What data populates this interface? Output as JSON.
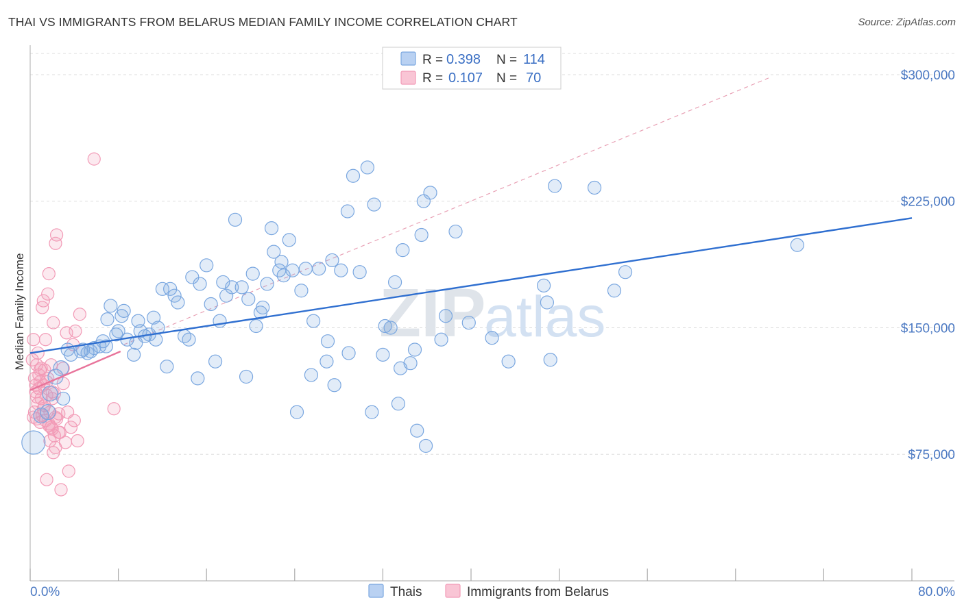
{
  "title": "THAI VS IMMIGRANTS FROM BELARUS MEDIAN FAMILY INCOME CORRELATION CHART",
  "source": "Source: ZipAtlas.com",
  "watermark": {
    "zip": "ZIP",
    "atlas": "atlas"
  },
  "chart_data": {
    "type": "scatter",
    "ylabel": "Median Family Income",
    "xlim": [
      0,
      80
    ],
    "ylim": [
      0,
      315000
    ],
    "x_tick_labels": {
      "left": "0.0%",
      "right": "80.0%"
    },
    "y_ticks": [
      {
        "value": 75000,
        "label": "$75,000"
      },
      {
        "value": 150000,
        "label": "$150,000"
      },
      {
        "value": 225000,
        "label": "$225,000"
      },
      {
        "value": 300000,
        "label": "$300,000"
      }
    ],
    "grid": true,
    "legend": {
      "placement": "top-center",
      "rows": [
        {
          "r_label": "R =",
          "r": "0.398",
          "n_label": "N =",
          "n": "114"
        },
        {
          "r_label": "R =",
          "r": "0.107",
          "n_label": "N =",
          "n": "70"
        }
      ]
    },
    "colors": {
      "thais": "#7aa7e0",
      "belarus": "#f29ab6",
      "thais_line": "#2f6fd0",
      "belarus_line": "#e8749b",
      "ref_line": "#e8a0b4"
    },
    "series": [
      {
        "name": "Thais",
        "points": [
          [
            0.3,
            82000
          ],
          [
            1.0,
            98000
          ],
          [
            1.6,
            100000
          ],
          [
            1.8,
            111000
          ],
          [
            2.3,
            121000
          ],
          [
            2.8,
            126000
          ],
          [
            3.0,
            108000
          ],
          [
            3.4,
            137000
          ],
          [
            3.7,
            134000
          ],
          [
            4.6,
            136000
          ],
          [
            4.8,
            137000
          ],
          [
            5.2,
            135000
          ],
          [
            5.5,
            136000
          ],
          [
            5.8,
            138000
          ],
          [
            6.3,
            139000
          ],
          [
            6.6,
            142000
          ],
          [
            6.9,
            139000
          ],
          [
            7.0,
            155000
          ],
          [
            7.3,
            163000
          ],
          [
            7.8,
            146000
          ],
          [
            8.0,
            148000
          ],
          [
            8.3,
            157000
          ],
          [
            8.5,
            160000
          ],
          [
            8.8,
            143000
          ],
          [
            9.4,
            134000
          ],
          [
            9.6,
            141000
          ],
          [
            9.8,
            154000
          ],
          [
            10.0,
            148000
          ],
          [
            10.4,
            145000
          ],
          [
            10.8,
            146000
          ],
          [
            11.2,
            156000
          ],
          [
            11.4,
            143000
          ],
          [
            11.6,
            150000
          ],
          [
            12.0,
            173000
          ],
          [
            12.4,
            127000
          ],
          [
            12.7,
            173000
          ],
          [
            13.1,
            169000
          ],
          [
            13.4,
            165000
          ],
          [
            14.0,
            145000
          ],
          [
            14.4,
            143000
          ],
          [
            14.7,
            180000
          ],
          [
            15.2,
            120000
          ],
          [
            15.4,
            176000
          ],
          [
            16.0,
            187000
          ],
          [
            16.4,
            164000
          ],
          [
            16.8,
            130000
          ],
          [
            17.2,
            154000
          ],
          [
            17.5,
            177000
          ],
          [
            17.8,
            169000
          ],
          [
            18.3,
            174000
          ],
          [
            18.6,
            214000
          ],
          [
            19.2,
            174000
          ],
          [
            19.6,
            121000
          ],
          [
            19.8,
            167000
          ],
          [
            20.2,
            182000
          ],
          [
            20.5,
            151000
          ],
          [
            20.9,
            159000
          ],
          [
            21.1,
            162000
          ],
          [
            21.5,
            176000
          ],
          [
            21.9,
            209000
          ],
          [
            22.1,
            195000
          ],
          [
            22.6,
            184000
          ],
          [
            22.8,
            189000
          ],
          [
            23.0,
            181000
          ],
          [
            23.5,
            202000
          ],
          [
            23.8,
            184000
          ],
          [
            24.2,
            100000
          ],
          [
            24.6,
            172000
          ],
          [
            25.0,
            185000
          ],
          [
            25.5,
            122000
          ],
          [
            25.7,
            154000
          ],
          [
            26.2,
            185000
          ],
          [
            26.9,
            130000
          ],
          [
            27.0,
            142000
          ],
          [
            27.4,
            190000
          ],
          [
            27.6,
            116000
          ],
          [
            28.2,
            184000
          ],
          [
            28.8,
            219000
          ],
          [
            28.9,
            135000
          ],
          [
            29.3,
            240000
          ],
          [
            29.9,
            183000
          ],
          [
            30.6,
            245000
          ],
          [
            31.0,
            100000
          ],
          [
            31.2,
            223000
          ],
          [
            32.0,
            134000
          ],
          [
            32.2,
            151000
          ],
          [
            32.7,
            150000
          ],
          [
            33.1,
            177000
          ],
          [
            33.4,
            105000
          ],
          [
            33.6,
            126000
          ],
          [
            33.8,
            196000
          ],
          [
            34.5,
            129000
          ],
          [
            34.9,
            137000
          ],
          [
            35.1,
            89000
          ],
          [
            35.5,
            205000
          ],
          [
            35.7,
            225000
          ],
          [
            35.9,
            80000
          ],
          [
            36.3,
            230000
          ],
          [
            37.3,
            143000
          ],
          [
            37.7,
            157000
          ],
          [
            38.6,
            207000
          ],
          [
            39.8,
            153000
          ],
          [
            41.9,
            144000
          ],
          [
            43.4,
            130000
          ],
          [
            46.6,
            175000
          ],
          [
            46.9,
            165000
          ],
          [
            47.2,
            131000
          ],
          [
            47.6,
            234000
          ],
          [
            51.2,
            233000
          ],
          [
            53.0,
            172000
          ],
          [
            54.0,
            183000
          ],
          [
            69.6,
            199000
          ]
        ],
        "trend": {
          "x": [
            0,
            80
          ],
          "y": [
            135000,
            215000
          ]
        }
      },
      {
        "name": "Immigrants from Belarus",
        "points": [
          [
            0.2,
            131000
          ],
          [
            0.3,
            143000
          ],
          [
            0.4,
            120000
          ],
          [
            0.4,
            100000
          ],
          [
            0.5,
            116000
          ],
          [
            0.5,
            112000
          ],
          [
            0.6,
            128000
          ],
          [
            0.6,
            96000
          ],
          [
            0.7,
            135000
          ],
          [
            0.7,
            105000
          ],
          [
            0.8,
            122000
          ],
          [
            0.8,
            114000
          ],
          [
            0.9,
            94000
          ],
          [
            0.9,
            118000
          ],
          [
            1.0,
            108000
          ],
          [
            1.0,
            126000
          ],
          [
            1.1,
            162000
          ],
          [
            1.1,
            98000
          ],
          [
            1.2,
            166000
          ],
          [
            1.2,
            116000
          ],
          [
            1.3,
            125000
          ],
          [
            1.3,
            104000
          ],
          [
            1.4,
            143000
          ],
          [
            1.4,
            95000
          ],
          [
            1.5,
            60000
          ],
          [
            1.5,
            110000
          ],
          [
            1.6,
            170000
          ],
          [
            1.6,
            120000
          ],
          [
            1.7,
            182000
          ],
          [
            1.7,
            93000
          ],
          [
            1.8,
            100000
          ],
          [
            1.8,
            83000
          ],
          [
            1.9,
            128000
          ],
          [
            1.9,
            91000
          ],
          [
            2.0,
            108000
          ],
          [
            2.0,
            90000
          ],
          [
            2.1,
            153000
          ],
          [
            2.1,
            76000
          ],
          [
            2.2,
            111000
          ],
          [
            2.2,
            86000
          ],
          [
            2.3,
            200000
          ],
          [
            2.3,
            79000
          ],
          [
            2.4,
            205000
          ],
          [
            2.4,
            96000
          ],
          [
            2.6,
            99000
          ],
          [
            2.7,
            88000
          ],
          [
            2.8,
            54000
          ],
          [
            3.0,
            126000
          ],
          [
            3.2,
            82000
          ],
          [
            3.3,
            147000
          ],
          [
            3.5,
            65000
          ],
          [
            3.7,
            91000
          ],
          [
            3.9,
            140000
          ],
          [
            4.1,
            148000
          ],
          [
            4.3,
            83000
          ],
          [
            4.5,
            158000
          ],
          [
            0.3,
            97000
          ],
          [
            0.6,
            109000
          ],
          [
            0.9,
            125000
          ],
          [
            1.2,
            102000
          ],
          [
            1.5,
            118000
          ],
          [
            1.7,
            92000
          ],
          [
            2.0,
            112000
          ],
          [
            2.3,
            97000
          ],
          [
            2.6,
            88000
          ],
          [
            3.0,
            117000
          ],
          [
            3.4,
            100000
          ],
          [
            4.0,
            95000
          ],
          [
            5.8,
            250000
          ],
          [
            7.6,
            102000
          ]
        ],
        "trend": {
          "x": [
            0,
            8.2
          ],
          "y": [
            113000,
            136000
          ]
        }
      }
    ],
    "reference_line": {
      "style": "dashed",
      "x": [
        8.5,
        67
      ],
      "y": [
        140000,
        298000
      ]
    }
  },
  "bottom_legend": [
    "Thais",
    "Immigrants from Belarus"
  ]
}
